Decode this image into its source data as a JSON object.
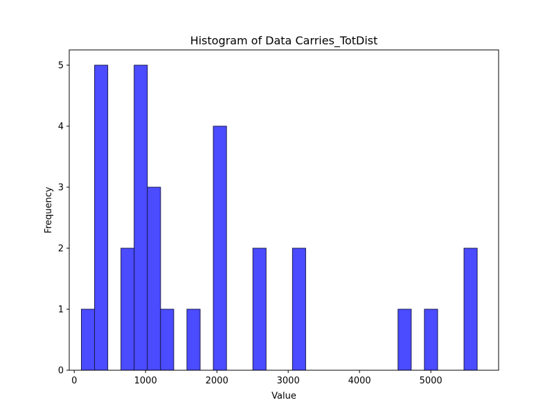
{
  "chart_data": {
    "type": "bar",
    "title": "Histogram of Data Carries_TotDist",
    "xlabel": "Value",
    "ylabel": "Frequency",
    "xlim": [
      -70,
      5950
    ],
    "ylim": [
      0,
      5.25
    ],
    "xticks": [
      0,
      1000,
      2000,
      3000,
      4000,
      5000
    ],
    "yticks": [
      0,
      1,
      2,
      3,
      4,
      5
    ],
    "bin_width": 185,
    "bins": [
      {
        "start": 100,
        "count": 1
      },
      {
        "start": 285,
        "count": 5
      },
      {
        "start": 655,
        "count": 2
      },
      {
        "start": 840,
        "count": 5
      },
      {
        "start": 1025,
        "count": 3
      },
      {
        "start": 1210,
        "count": 1
      },
      {
        "start": 1580,
        "count": 1
      },
      {
        "start": 1950,
        "count": 4
      },
      {
        "start": 2505,
        "count": 2
      },
      {
        "start": 3060,
        "count": 2
      },
      {
        "start": 4540,
        "count": 1
      },
      {
        "start": 4910,
        "count": 1
      },
      {
        "start": 5465,
        "count": 2
      }
    ],
    "grid": false,
    "colors": {
      "bar_fill": "#4b4bff",
      "bar_edge": "#1a1a4d"
    }
  }
}
